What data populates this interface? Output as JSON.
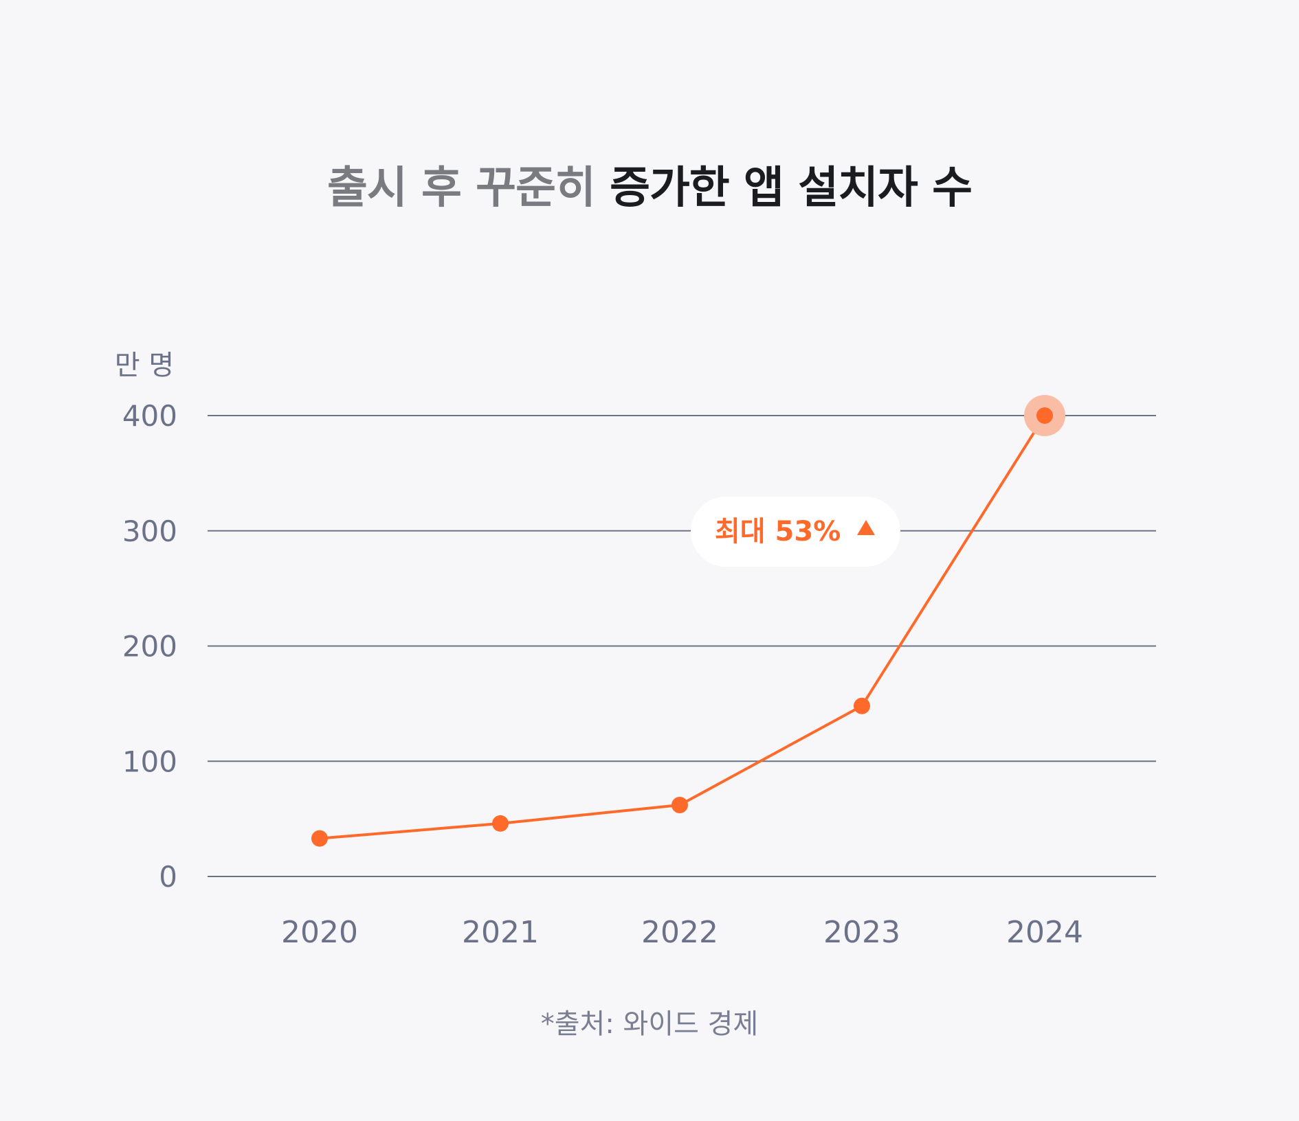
{
  "title": {
    "muted": "출시 후 꾸준히",
    "strong": "증가한 앱 설치자 수"
  },
  "source": "*출처: 와이드 경제",
  "colors": {
    "background": "#f7f7f9",
    "line": "#ff6a2b",
    "grid": "#6b7189",
    "axis_text": "#6b7189",
    "title_muted": "#7a7b80",
    "title_strong": "#1b1c1f",
    "badge_bg": "#ffffff",
    "highlight": "#f9bda5"
  },
  "chart_data": {
    "type": "line",
    "title": "출시 후 꾸준히 증가한 앱 설치자 수",
    "ylabel": "만 명",
    "xlabel": "",
    "ylim": [
      0,
      400
    ],
    "yticks": [
      0,
      100,
      200,
      300,
      400
    ],
    "categories": [
      "2020",
      "2021",
      "2022",
      "2023",
      "2024"
    ],
    "series": [
      {
        "values": [
          33,
          46,
          62,
          148,
          400
        ]
      }
    ],
    "grid": true,
    "highlight_index": 4,
    "annotation": {
      "label": "최대 53%",
      "icon": "triangle-up-icon"
    }
  }
}
